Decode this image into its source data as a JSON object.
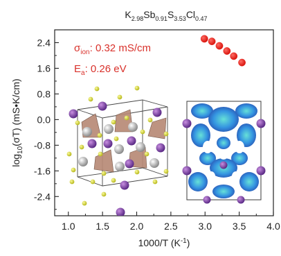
{
  "chart_data": {
    "type": "scatter",
    "title": {
      "parts": [
        {
          "t": "K",
          "sub": false
        },
        {
          "t": "2.98",
          "sub": true
        },
        {
          "t": "Sb",
          "sub": false
        },
        {
          "t": "0.91",
          "sub": true
        },
        {
          "t": "S",
          "sub": false
        },
        {
          "t": "3.53",
          "sub": true
        },
        {
          "t": "Cl",
          "sub": false
        },
        {
          "t": "0.47",
          "sub": true
        }
      ]
    },
    "xlabel": {
      "main": "1000/T (K",
      "sup": "-1",
      "tail": ")"
    },
    "ylabel": {
      "pre": "log",
      "sub": "10",
      "post": "(σT) (mS•K/cm)"
    },
    "xlim": [
      0.8,
      4.0
    ],
    "ylim": [
      -3.0,
      2.8
    ],
    "xticks": [
      "1.0",
      "1.5",
      "2.0",
      "2.5",
      "3.0",
      "3.5",
      "4.0"
    ],
    "yticks": [
      "2.4",
      "1.6",
      "0.8",
      "0.0",
      "-0.8",
      "-1.6",
      "-2.4"
    ],
    "points_x": [
      2.99,
      3.1,
      3.21,
      3.32,
      3.42,
      3.54
    ],
    "points_y": [
      2.52,
      2.44,
      2.3,
      2.14,
      1.98,
      1.78
    ],
    "marker_color": "#e8231c",
    "annotations": {
      "sigma": {
        "pre": "σ",
        "sub": "ion",
        "post": ": 0.32 mS/cm"
      },
      "ea": {
        "pre": "E",
        "sub": "a",
        "post": ": 0.26 eV"
      }
    },
    "grid": false
  },
  "insets": {
    "crystal_structure": "crystal-structure-illustration",
    "density_map": "ion-density-map-illustration"
  }
}
